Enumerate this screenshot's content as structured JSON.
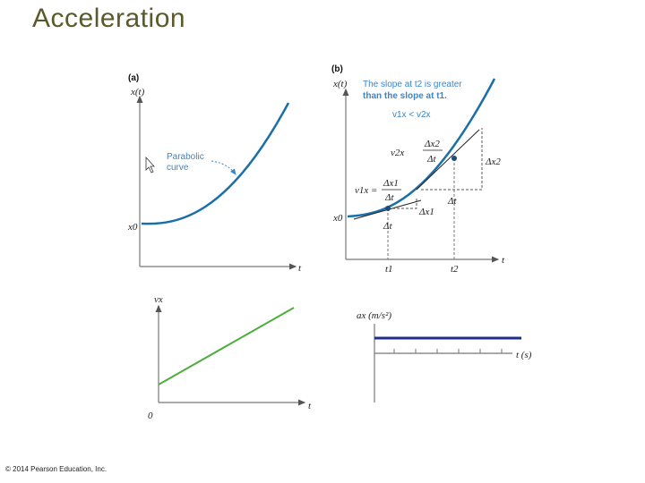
{
  "slide": {
    "title": "Acceleration",
    "copyright": "© 2014 Pearson Education, Inc."
  },
  "panel_a": {
    "label": "(a)",
    "y_axis": "x(t)",
    "x_axis": "t",
    "x0": "x0",
    "curve_note_1": "Parabolic",
    "curve_note_2": "curve"
  },
  "panel_b": {
    "label": "(b)",
    "y_axis": "x(t)",
    "x_axis": "t",
    "x0": "x0",
    "note_line1": "The slope at t2 is greater",
    "note_line2": "than the slope at t1.",
    "note_line3": "v1x < v2x",
    "v1x": "v1x =",
    "v2x": "v2x",
    "dx1": "Δx1",
    "dx2": "Δx2",
    "dt": "Δt",
    "t1": "t1",
    "t2": "t2"
  },
  "panel_c": {
    "y_axis": "vx",
    "x_axis": "t",
    "origin": "0"
  },
  "panel_d": {
    "y_axis": "ax (m/s²)",
    "x_axis": "t (s)"
  },
  "colors": {
    "title": "#5a5a2a",
    "curve": "#1a6fa8",
    "velocity_line": "#4caf3c",
    "accel_line": "#1f2e8a",
    "annotation": "#3a86c8"
  }
}
